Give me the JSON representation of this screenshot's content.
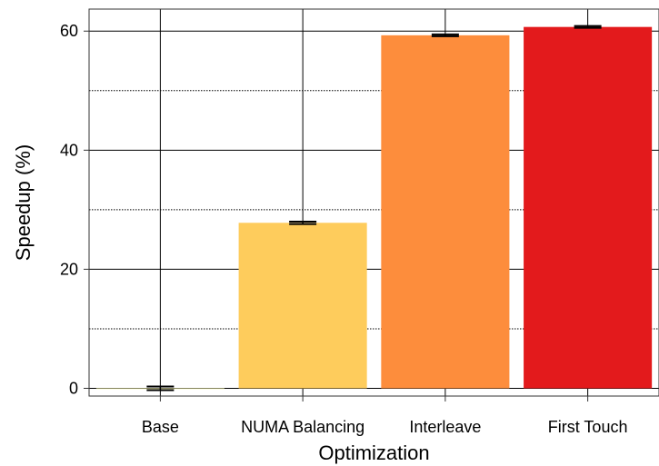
{
  "chart_data": {
    "type": "bar",
    "xlabel": "Optimization",
    "ylabel": "Speedup (%)",
    "categories": [
      "Base",
      "NUMA Balancing",
      "Interleave",
      "First Touch"
    ],
    "values": [
      0,
      27.8,
      59.3,
      60.7
    ],
    "error_bars": [
      0.3,
      0.2,
      0.15,
      0.15
    ],
    "colors": [
      "#FFFFB2",
      "#FECC5C",
      "#FD8D3C",
      "#E31A1C"
    ],
    "ylim": [
      -1.3,
      63.7
    ],
    "yticks": [
      0,
      20,
      40,
      60
    ],
    "ytick_labels": [
      "0",
      "20",
      "40",
      "60"
    ],
    "minor_yticks": [
      10,
      30,
      50
    ],
    "grid": true,
    "legend": "none"
  }
}
